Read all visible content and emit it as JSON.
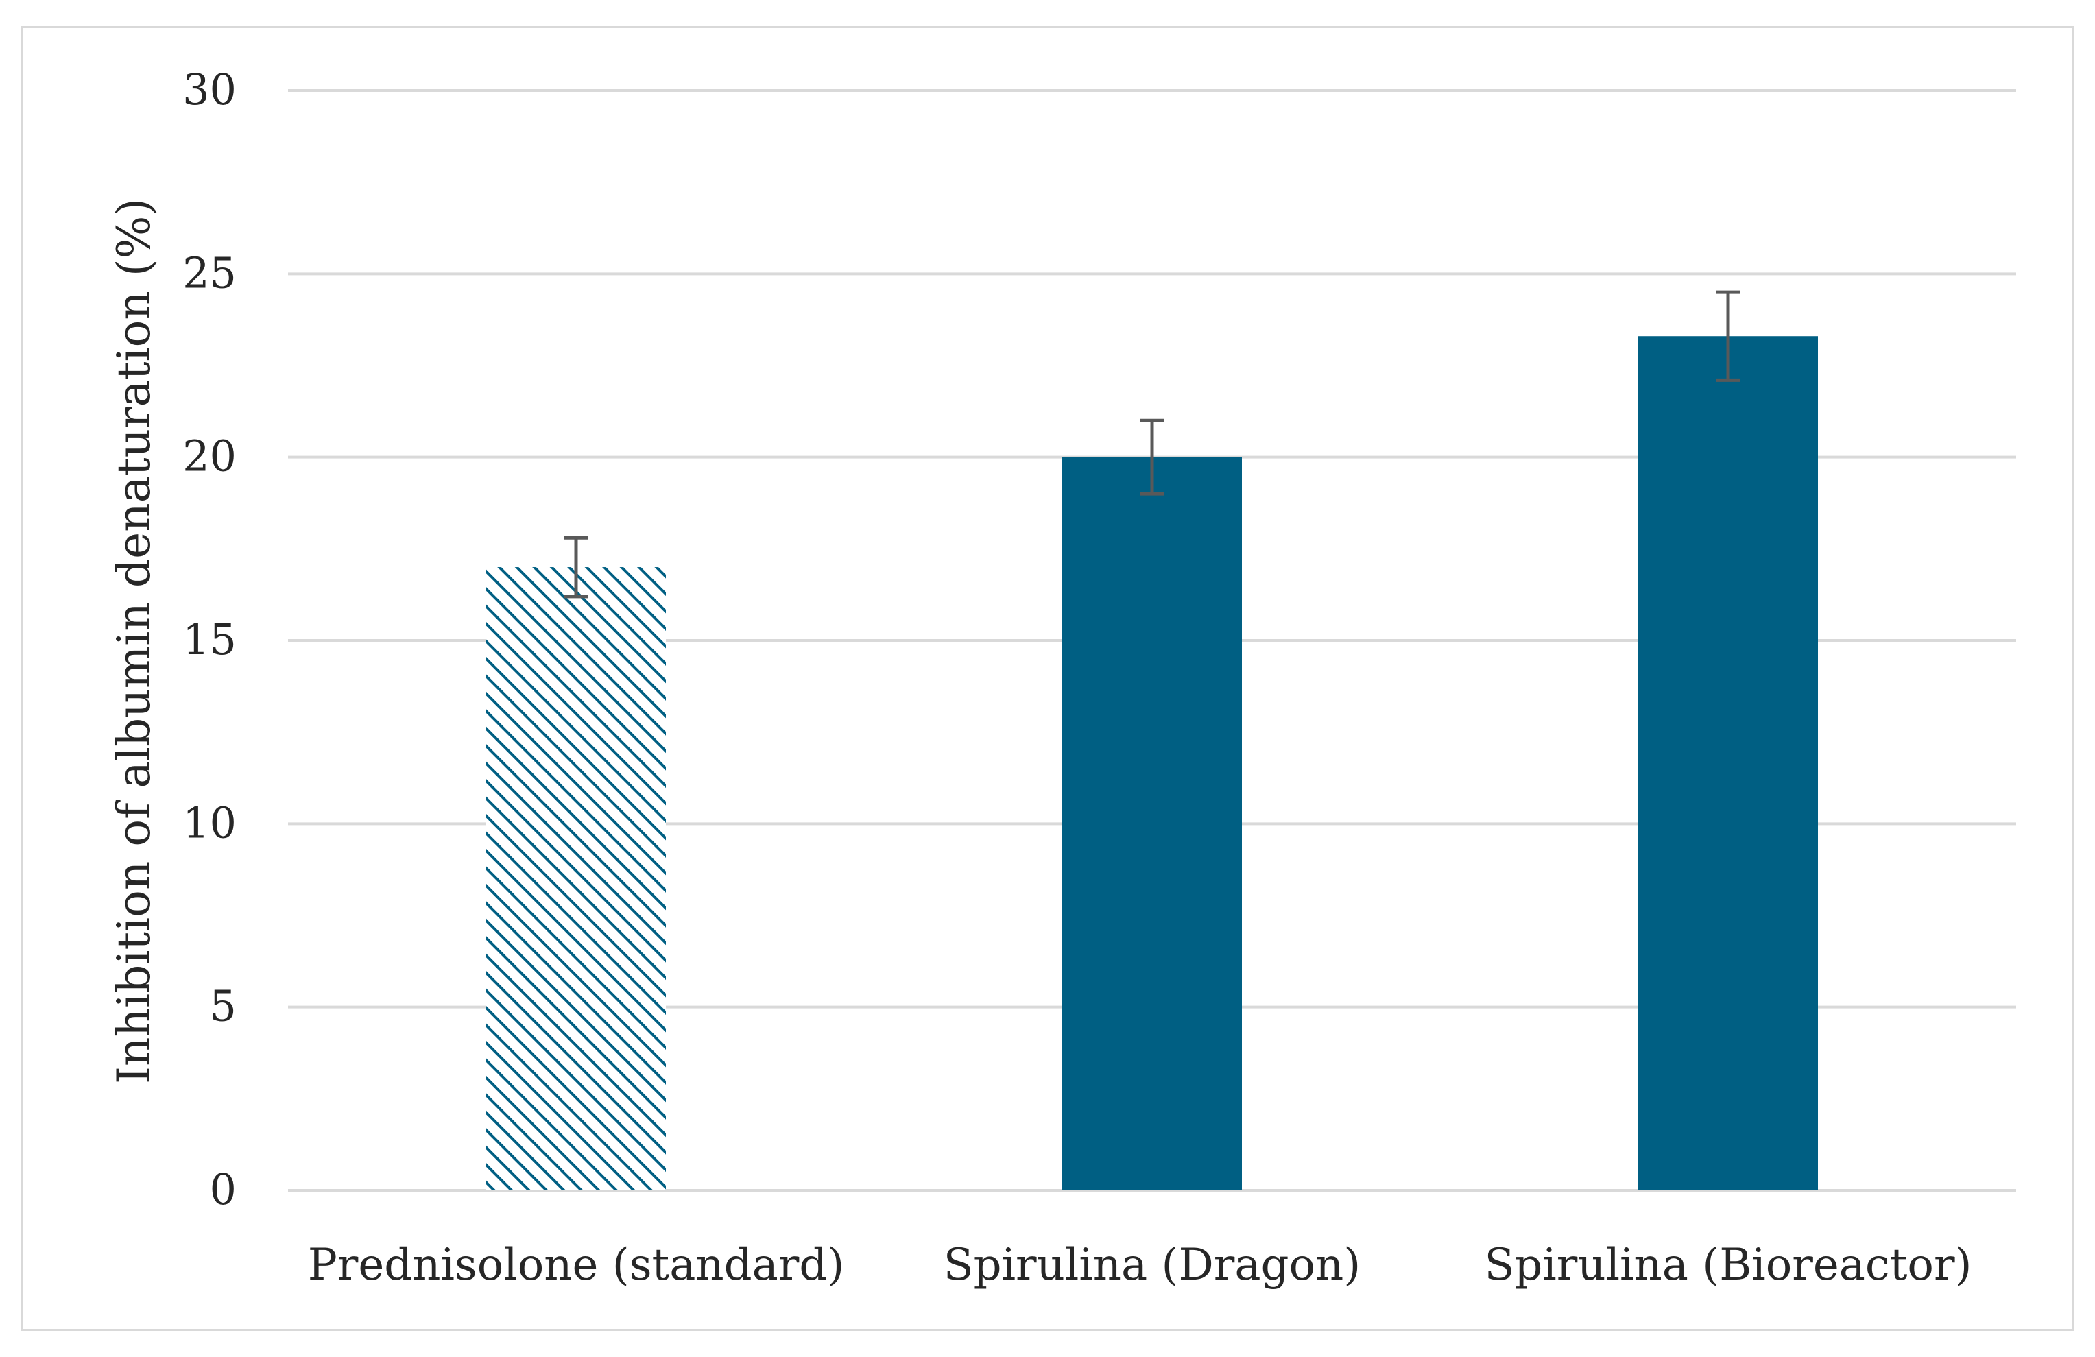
{
  "chart_data": {
    "type": "bar",
    "title": "",
    "xlabel": "",
    "ylabel": "Inhibition of albumin denaturation (%)",
    "ylim": [
      0,
      30
    ],
    "yticks": [
      "0",
      "5",
      "10",
      "15",
      "20",
      "25",
      "30"
    ],
    "ytick_values": [
      0,
      5,
      10,
      15,
      20,
      25,
      30
    ],
    "grid": true,
    "categories": [
      "Prednisolone (standard)",
      "Spirulina (Dragon)",
      "Spirulina (Bioreactor)"
    ],
    "values": [
      17.0,
      20.0,
      23.3
    ],
    "errors": [
      0.8,
      1.0,
      1.2
    ],
    "fill_styles": [
      "hatched",
      "solid",
      "solid"
    ],
    "colors": {
      "bar": "#005f83",
      "grid": "#d9d9d9",
      "error_bar": "#595959",
      "text": "#262626"
    }
  }
}
